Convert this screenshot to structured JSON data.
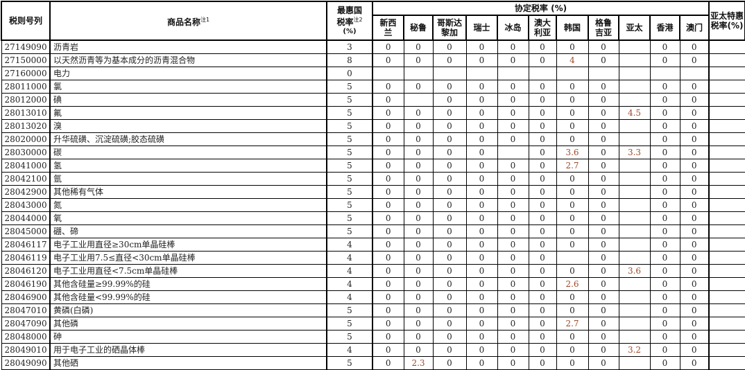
{
  "header": {
    "code": "税则号列",
    "name": "商品名称",
    "name_note": "注1",
    "mfn_line1": "最惠国",
    "mfn_line2": "税率",
    "mfn_note": "注2",
    "mfn_unit": "(%)",
    "agreement": "协定税率 (%)",
    "countries": [
      "新西兰",
      "秘鲁",
      "哥斯达黎加",
      "瑞士",
      "冰岛",
      "澳大利亚",
      "韩国",
      "格鲁吉亚",
      "亚太",
      "香港",
      "澳门"
    ],
    "apta_special": "亚太特惠税率(%)"
  },
  "rows": [
    {
      "code": "27149090",
      "name": "沥青岩",
      "mfn": "3",
      "rates": [
        "0",
        "0",
        "0",
        "0",
        "0",
        "0",
        "0",
        "0",
        "",
        "0",
        "0"
      ],
      "special": ""
    },
    {
      "code": "27150000",
      "name": "以天然沥青等为基本成分的沥青混合物",
      "mfn": "8",
      "rates": [
        "0",
        "0",
        "0",
        "0",
        "0",
        "0",
        "4",
        "0",
        "",
        "0",
        "0"
      ],
      "special": ""
    },
    {
      "code": "27160000",
      "name": "电力",
      "mfn": "0",
      "rates": [
        "",
        "",
        "",
        "",
        "",
        "",
        "",
        "",
        "",
        "",
        ""
      ],
      "special": ""
    },
    {
      "code": "28011000",
      "name": "氯",
      "mfn": "5",
      "rates": [
        "0",
        "0",
        "0",
        "0",
        "0",
        "0",
        "0",
        "0",
        "",
        "0",
        "0"
      ],
      "special": ""
    },
    {
      "code": "28012000",
      "name": "碘",
      "mfn": "5",
      "rates": [
        "0",
        "",
        "0",
        "0",
        "0",
        "0",
        "0",
        "0",
        "",
        "0",
        "0"
      ],
      "special": ""
    },
    {
      "code": "28013010",
      "name": "氟",
      "mfn": "5",
      "rates": [
        "0",
        "0",
        "0",
        "0",
        "0",
        "0",
        "0",
        "0",
        "4.5",
        "0",
        "0"
      ],
      "special": ""
    },
    {
      "code": "28013020",
      "name": "溴",
      "mfn": "5",
      "rates": [
        "0",
        "0",
        "0",
        "0",
        "0",
        "0",
        "0",
        "0",
        "",
        "0",
        "0"
      ],
      "special": ""
    },
    {
      "code": "28020000",
      "name": "升华硫磺、沉淀硫磺;胶态硫磺",
      "mfn": "5",
      "rates": [
        "0",
        "0",
        "0",
        "0",
        "0",
        "0",
        "0",
        "0",
        "",
        "0",
        "0"
      ],
      "special": ""
    },
    {
      "code": "28030000",
      "name": "碳",
      "mfn": "5",
      "rates": [
        "0",
        "0",
        "0",
        "0",
        "",
        "0",
        "3.6",
        "0",
        "3.3",
        "0",
        "0"
      ],
      "special": ""
    },
    {
      "code": "28041000",
      "name": "氢",
      "mfn": "5",
      "rates": [
        "0",
        "0",
        "0",
        "0",
        "0",
        "0",
        "2.7",
        "0",
        "",
        "0",
        "0"
      ],
      "special": ""
    },
    {
      "code": "28042100",
      "name": "氩",
      "mfn": "5",
      "rates": [
        "0",
        "0",
        "0",
        "0",
        "0",
        "0",
        "0",
        "0",
        "",
        "0",
        "0"
      ],
      "special": ""
    },
    {
      "code": "28042900",
      "name": "其他稀有气体",
      "mfn": "5",
      "rates": [
        "0",
        "0",
        "0",
        "0",
        "0",
        "0",
        "0",
        "0",
        "",
        "0",
        "0"
      ],
      "special": ""
    },
    {
      "code": "28043000",
      "name": "氮",
      "mfn": "5",
      "rates": [
        "0",
        "0",
        "0",
        "0",
        "0",
        "0",
        "0",
        "0",
        "",
        "0",
        "0"
      ],
      "special": ""
    },
    {
      "code": "28044000",
      "name": "氧",
      "mfn": "5",
      "rates": [
        "0",
        "0",
        "0",
        "0",
        "0",
        "0",
        "0",
        "0",
        "",
        "0",
        "0"
      ],
      "special": ""
    },
    {
      "code": "28045000",
      "name": "硼、碲",
      "mfn": "5",
      "rates": [
        "0",
        "0",
        "0",
        "0",
        "0",
        "0",
        "0",
        "0",
        "",
        "0",
        "0"
      ],
      "special": ""
    },
    {
      "code": "28046117",
      "name": "电子工业用直径≥30cm单晶硅棒",
      "mfn": "4",
      "rates": [
        "0",
        "0",
        "0",
        "0",
        "0",
        "0",
        "0",
        "0",
        "",
        "0",
        "0"
      ],
      "special": ""
    },
    {
      "code": "28046119",
      "name": "电子工业用7.5≤直径<30cm单晶硅棒",
      "mfn": "4",
      "rates": [
        "0",
        "0",
        "0",
        "0",
        "0",
        "0",
        "",
        "0",
        "",
        "0",
        "0"
      ],
      "special": ""
    },
    {
      "code": "28046120",
      "name": "电子工业用直径<7.5cm单晶硅棒",
      "mfn": "4",
      "rates": [
        "0",
        "0",
        "0",
        "0",
        "0",
        "0",
        "0",
        "0",
        "3.6",
        "0",
        "0"
      ],
      "special": ""
    },
    {
      "code": "28046190",
      "name": "其他含硅量≥99.99%的硅",
      "mfn": "4",
      "rates": [
        "0",
        "0",
        "0",
        "0",
        "0",
        "0",
        "2.6",
        "0",
        "",
        "0",
        "0"
      ],
      "special": ""
    },
    {
      "code": "28046900",
      "name": "其他含硅量<99.99%的硅",
      "mfn": "4",
      "rates": [
        "0",
        "0",
        "0",
        "0",
        "0",
        "0",
        "0",
        "0",
        "",
        "0",
        "0"
      ],
      "special": ""
    },
    {
      "code": "28047010",
      "name": "黄磷(白磷)",
      "mfn": "5",
      "rates": [
        "0",
        "0",
        "0",
        "0",
        "0",
        "0",
        "0",
        "0",
        "",
        "0",
        "0"
      ],
      "special": ""
    },
    {
      "code": "28047090",
      "name": "其他磷",
      "mfn": "5",
      "rates": [
        "0",
        "0",
        "0",
        "0",
        "0",
        "0",
        "2.7",
        "0",
        "",
        "0",
        "0"
      ],
      "special": ""
    },
    {
      "code": "28048000",
      "name": "砷",
      "mfn": "5",
      "rates": [
        "0",
        "0",
        "0",
        "0",
        "0",
        "0",
        "0",
        "0",
        "",
        "0",
        "0"
      ],
      "special": ""
    },
    {
      "code": "28049010",
      "name": "用于电子工业的硒晶体棒",
      "mfn": "4",
      "rates": [
        "0",
        "0",
        "0",
        "0",
        "0",
        "0",
        "0",
        "0",
        "3.2",
        "0",
        "0"
      ],
      "special": ""
    },
    {
      "code": "28049090",
      "name": "其他硒",
      "mfn": "5",
      "rates": [
        "0",
        "2.3",
        "0",
        "0",
        "0",
        "0",
        "0",
        "0",
        "",
        "0",
        "0"
      ],
      "special": ""
    }
  ]
}
